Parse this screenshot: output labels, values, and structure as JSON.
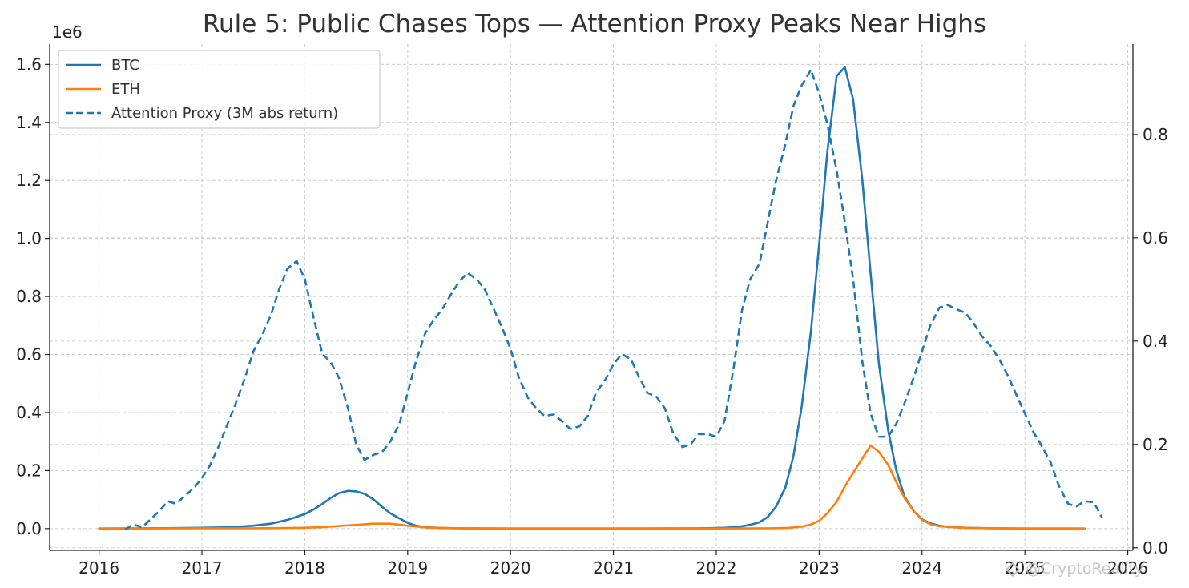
{
  "chart_data": {
    "type": "line",
    "title": "Rule 5: Public Chases Tops — Attention Proxy Peaks Near Highs",
    "y_exponent_label": "1e6",
    "x_ticks": [
      "2016",
      "2017",
      "2018",
      "2019",
      "2020",
      "2021",
      "2022",
      "2023",
      "2024",
      "2025",
      "2026"
    ],
    "y_left_ticks": [
      "0.0",
      "0.2",
      "0.4",
      "0.6",
      "0.8",
      "1.0",
      "1.2",
      "1.4",
      "1.6"
    ],
    "y_right_ticks": [
      "0.0",
      "0.2",
      "0.4",
      "0.6",
      "0.8"
    ],
    "xlim": [
      2015.52,
      2026.05
    ],
    "ylim_left": [
      -0.075,
      1.67
    ],
    "ylim_right": [
      -0.005,
      0.975
    ],
    "grid": true,
    "legend_position": "top-left",
    "watermark": "@CryptoReality",
    "series": [
      {
        "name": "BTC",
        "axis": "left",
        "style": "solid",
        "color": "#1f77b4",
        "points": [
          [
            2016.0,
            0.0005
          ],
          [
            2016.5,
            0.001
          ],
          [
            2016.83,
            0.002
          ],
          [
            2017.0,
            0.003
          ],
          [
            2017.17,
            0.004
          ],
          [
            2017.33,
            0.006
          ],
          [
            2017.5,
            0.01
          ],
          [
            2017.67,
            0.017
          ],
          [
            2017.83,
            0.03
          ],
          [
            2018.0,
            0.05
          ],
          [
            2018.08,
            0.065
          ],
          [
            2018.17,
            0.085
          ],
          [
            2018.25,
            0.105
          ],
          [
            2018.33,
            0.122
          ],
          [
            2018.42,
            0.13
          ],
          [
            2018.5,
            0.128
          ],
          [
            2018.58,
            0.12
          ],
          [
            2018.67,
            0.1
          ],
          [
            2018.75,
            0.075
          ],
          [
            2018.83,
            0.053
          ],
          [
            2018.92,
            0.035
          ],
          [
            2019.0,
            0.02
          ],
          [
            2019.08,
            0.01
          ],
          [
            2019.17,
            0.005
          ],
          [
            2019.33,
            0.002
          ],
          [
            2019.5,
            0.001
          ],
          [
            2020.0,
            0.0005
          ],
          [
            2021.0,
            0.0005
          ],
          [
            2021.5,
            0.0008
          ],
          [
            2021.83,
            0.001
          ],
          [
            2022.0,
            0.002
          ],
          [
            2022.08,
            0.003
          ],
          [
            2022.17,
            0.005
          ],
          [
            2022.25,
            0.008
          ],
          [
            2022.33,
            0.013
          ],
          [
            2022.42,
            0.022
          ],
          [
            2022.5,
            0.04
          ],
          [
            2022.58,
            0.075
          ],
          [
            2022.67,
            0.14
          ],
          [
            2022.75,
            0.25
          ],
          [
            2022.83,
            0.42
          ],
          [
            2022.92,
            0.68
          ],
          [
            2023.0,
            0.98
          ],
          [
            2023.08,
            1.3
          ],
          [
            2023.17,
            1.56
          ],
          [
            2023.25,
            1.59
          ],
          [
            2023.33,
            1.48
          ],
          [
            2023.42,
            1.2
          ],
          [
            2023.5,
            0.88
          ],
          [
            2023.58,
            0.57
          ],
          [
            2023.67,
            0.34
          ],
          [
            2023.75,
            0.2
          ],
          [
            2023.83,
            0.11
          ],
          [
            2023.92,
            0.06
          ],
          [
            2024.0,
            0.032
          ],
          [
            2024.08,
            0.018
          ],
          [
            2024.17,
            0.01
          ],
          [
            2024.25,
            0.006
          ],
          [
            2024.42,
            0.003
          ],
          [
            2024.67,
            0.001
          ],
          [
            2025.0,
            0.0005
          ],
          [
            2025.58,
            0.0003
          ]
        ]
      },
      {
        "name": "ETH",
        "axis": "left",
        "style": "solid",
        "color": "#ff7f0e",
        "points": [
          [
            2016.0,
            0.0003
          ],
          [
            2017.0,
            0.001
          ],
          [
            2017.5,
            0.001
          ],
          [
            2017.83,
            0.002
          ],
          [
            2018.0,
            0.003
          ],
          [
            2018.17,
            0.005
          ],
          [
            2018.33,
            0.009
          ],
          [
            2018.5,
            0.013
          ],
          [
            2018.67,
            0.017
          ],
          [
            2018.83,
            0.017
          ],
          [
            2019.0,
            0.01
          ],
          [
            2019.17,
            0.004
          ],
          [
            2019.5,
            0.001
          ],
          [
            2020.0,
            0.0005
          ],
          [
            2021.0,
            0.0005
          ],
          [
            2022.0,
            0.0005
          ],
          [
            2022.5,
            0.001
          ],
          [
            2022.67,
            0.002
          ],
          [
            2022.75,
            0.004
          ],
          [
            2022.83,
            0.007
          ],
          [
            2022.92,
            0.014
          ],
          [
            2023.0,
            0.027
          ],
          [
            2023.08,
            0.053
          ],
          [
            2023.17,
            0.092
          ],
          [
            2023.25,
            0.145
          ],
          [
            2023.33,
            0.192
          ],
          [
            2023.42,
            0.242
          ],
          [
            2023.5,
            0.286
          ],
          [
            2023.58,
            0.265
          ],
          [
            2023.67,
            0.22
          ],
          [
            2023.75,
            0.16
          ],
          [
            2023.83,
            0.105
          ],
          [
            2023.92,
            0.06
          ],
          [
            2024.0,
            0.03
          ],
          [
            2024.08,
            0.015
          ],
          [
            2024.17,
            0.008
          ],
          [
            2024.33,
            0.004
          ],
          [
            2024.5,
            0.002
          ],
          [
            2025.0,
            0.0005
          ],
          [
            2025.58,
            0.0003
          ]
        ]
      },
      {
        "name": "Attention Proxy (3M abs return)",
        "axis": "right",
        "style": "dashed",
        "color": "#1f77b4",
        "points": [
          [
            2016.25,
            0.035
          ],
          [
            2016.33,
            0.045
          ],
          [
            2016.42,
            0.04
          ],
          [
            2016.5,
            0.055
          ],
          [
            2016.58,
            0.07
          ],
          [
            2016.67,
            0.09
          ],
          [
            2016.75,
            0.085
          ],
          [
            2016.83,
            0.1
          ],
          [
            2016.92,
            0.115
          ],
          [
            2017.0,
            0.135
          ],
          [
            2017.08,
            0.16
          ],
          [
            2017.17,
            0.2
          ],
          [
            2017.25,
            0.24
          ],
          [
            2017.33,
            0.28
          ],
          [
            2017.42,
            0.33
          ],
          [
            2017.5,
            0.38
          ],
          [
            2017.58,
            0.41
          ],
          [
            2017.67,
            0.45
          ],
          [
            2017.75,
            0.5
          ],
          [
            2017.83,
            0.54
          ],
          [
            2017.92,
            0.555
          ],
          [
            2018.0,
            0.52
          ],
          [
            2018.08,
            0.45
          ],
          [
            2018.17,
            0.375
          ],
          [
            2018.25,
            0.36
          ],
          [
            2018.33,
            0.33
          ],
          [
            2018.42,
            0.27
          ],
          [
            2018.5,
            0.2
          ],
          [
            2018.58,
            0.17
          ],
          [
            2018.67,
            0.18
          ],
          [
            2018.75,
            0.185
          ],
          [
            2018.83,
            0.205
          ],
          [
            2018.92,
            0.24
          ],
          [
            2019.0,
            0.3
          ],
          [
            2019.08,
            0.36
          ],
          [
            2019.17,
            0.415
          ],
          [
            2019.25,
            0.44
          ],
          [
            2019.33,
            0.46
          ],
          [
            2019.42,
            0.49
          ],
          [
            2019.5,
            0.515
          ],
          [
            2019.58,
            0.532
          ],
          [
            2019.67,
            0.52
          ],
          [
            2019.75,
            0.5
          ],
          [
            2019.83,
            0.465
          ],
          [
            2019.92,
            0.425
          ],
          [
            2020.0,
            0.385
          ],
          [
            2020.08,
            0.33
          ],
          [
            2020.17,
            0.29
          ],
          [
            2020.25,
            0.27
          ],
          [
            2020.33,
            0.255
          ],
          [
            2020.42,
            0.258
          ],
          [
            2020.5,
            0.245
          ],
          [
            2020.58,
            0.23
          ],
          [
            2020.67,
            0.235
          ],
          [
            2020.75,
            0.255
          ],
          [
            2020.83,
            0.3
          ],
          [
            2020.92,
            0.325
          ],
          [
            2021.0,
            0.355
          ],
          [
            2021.08,
            0.375
          ],
          [
            2021.17,
            0.365
          ],
          [
            2021.25,
            0.33
          ],
          [
            2021.33,
            0.3
          ],
          [
            2021.42,
            0.292
          ],
          [
            2021.5,
            0.27
          ],
          [
            2021.58,
            0.222
          ],
          [
            2021.67,
            0.195
          ],
          [
            2021.75,
            0.2
          ],
          [
            2021.83,
            0.22
          ],
          [
            2021.92,
            0.22
          ],
          [
            2022.0,
            0.215
          ],
          [
            2022.08,
            0.245
          ],
          [
            2022.17,
            0.35
          ],
          [
            2022.25,
            0.46
          ],
          [
            2022.33,
            0.52
          ],
          [
            2022.42,
            0.55
          ],
          [
            2022.5,
            0.63
          ],
          [
            2022.58,
            0.71
          ],
          [
            2022.67,
            0.78
          ],
          [
            2022.75,
            0.855
          ],
          [
            2022.83,
            0.895
          ],
          [
            2022.92,
            0.925
          ],
          [
            2023.0,
            0.88
          ],
          [
            2023.08,
            0.82
          ],
          [
            2023.17,
            0.73
          ],
          [
            2023.25,
            0.63
          ],
          [
            2023.33,
            0.52
          ],
          [
            2023.42,
            0.36
          ],
          [
            2023.5,
            0.26
          ],
          [
            2023.58,
            0.215
          ],
          [
            2023.67,
            0.215
          ],
          [
            2023.75,
            0.24
          ],
          [
            2023.83,
            0.28
          ],
          [
            2023.92,
            0.33
          ],
          [
            2024.0,
            0.38
          ],
          [
            2024.08,
            0.43
          ],
          [
            2024.17,
            0.465
          ],
          [
            2024.25,
            0.47
          ],
          [
            2024.33,
            0.462
          ],
          [
            2024.42,
            0.455
          ],
          [
            2024.5,
            0.435
          ],
          [
            2024.58,
            0.41
          ],
          [
            2024.67,
            0.39
          ],
          [
            2024.75,
            0.365
          ],
          [
            2024.83,
            0.335
          ],
          [
            2024.92,
            0.295
          ],
          [
            2025.0,
            0.26
          ],
          [
            2025.08,
            0.225
          ],
          [
            2025.17,
            0.195
          ],
          [
            2025.25,
            0.165
          ],
          [
            2025.33,
            0.12
          ],
          [
            2025.42,
            0.085
          ],
          [
            2025.5,
            0.08
          ],
          [
            2025.58,
            0.09
          ],
          [
            2025.67,
            0.088
          ],
          [
            2025.75,
            0.058
          ]
        ]
      }
    ]
  }
}
